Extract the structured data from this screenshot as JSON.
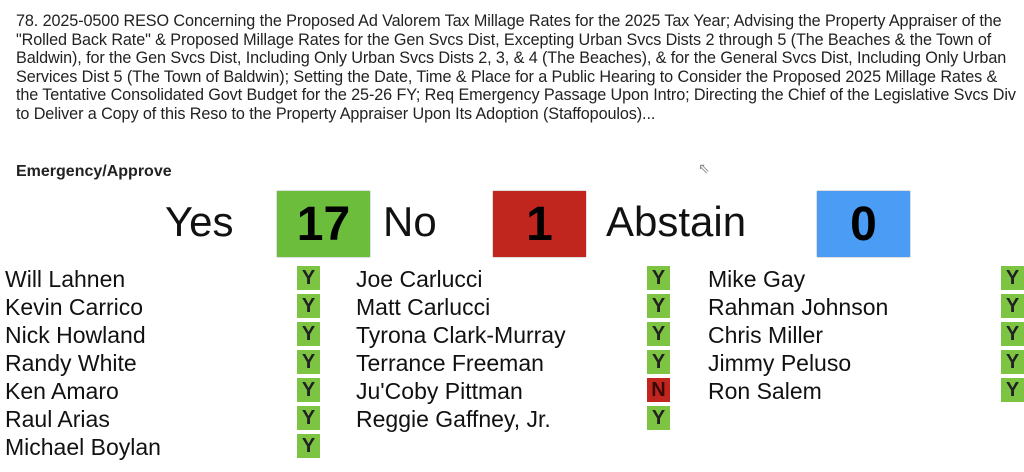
{
  "item_description": "78. 2025-0500 RESO Concerning the Proposed Ad Valorem Tax Millage Rates for the 2025 Tax Year; Advising the Property Appraiser of the \"Rolled Back Rate\" & Proposed Millage Rates for the Gen Svcs Dist, Excepting Urban Svcs Dists 2 through 5 (The Beaches & the Town of Baldwin), for the Gen Svcs Dist, Including Only Urban Svcs Dists 2, 3, & 4 (The Beaches), & for the General Svcs Dist, Including Only Urban Services Dist 5 (The Town of Baldwin); Setting the Date, Time & Place for a Public Hearing to Consider the Proposed 2025 Millage Rates & the Tentative Consolidated Govt Budget for the 25-26 FY; Req Emergency Passage Upon Intro; Directing the Chief of the Legislative Svcs Div to Deliver a Copy of this Reso to the Property Appraiser Upon Its Adoption (Staffopoulos)...",
  "vote_type": "Emergency/Approve",
  "tally": {
    "yes_label": "Yes",
    "yes": "17",
    "no_label": "No",
    "no": "1",
    "abstain_label": "Abstain",
    "abstain": "0"
  },
  "colors": {
    "yes": "#6cbd3c",
    "no": "#c0251e",
    "abstain": "#4a9cf5"
  },
  "columns": [
    [
      {
        "name": "Will Lahnen",
        "vote": "Y"
      },
      {
        "name": "Kevin Carrico",
        "vote": "Y"
      },
      {
        "name": "Nick Howland",
        "vote": "Y"
      },
      {
        "name": "Randy White",
        "vote": "Y"
      },
      {
        "name": "Ken Amaro",
        "vote": "Y"
      },
      {
        "name": "Raul Arias",
        "vote": "Y"
      },
      {
        "name": "Michael Boylan",
        "vote": "Y"
      }
    ],
    [
      {
        "name": "Joe Carlucci",
        "vote": "Y"
      },
      {
        "name": "Matt Carlucci",
        "vote": "Y"
      },
      {
        "name": "Tyrona Clark-Murray",
        "vote": "Y"
      },
      {
        "name": "Terrance Freeman",
        "vote": "Y"
      },
      {
        "name": "Ju'Coby Pittman",
        "vote": "N"
      },
      {
        "name": "Reggie Gaffney, Jr.",
        "vote": "Y"
      }
    ],
    [
      {
        "name": "Mike Gay",
        "vote": "Y"
      },
      {
        "name": "Rahman Johnson",
        "vote": "Y"
      },
      {
        "name": "Chris Miller",
        "vote": "Y"
      },
      {
        "name": "Jimmy Peluso",
        "vote": "Y"
      },
      {
        "name": "Ron Salem",
        "vote": "Y"
      }
    ]
  ]
}
